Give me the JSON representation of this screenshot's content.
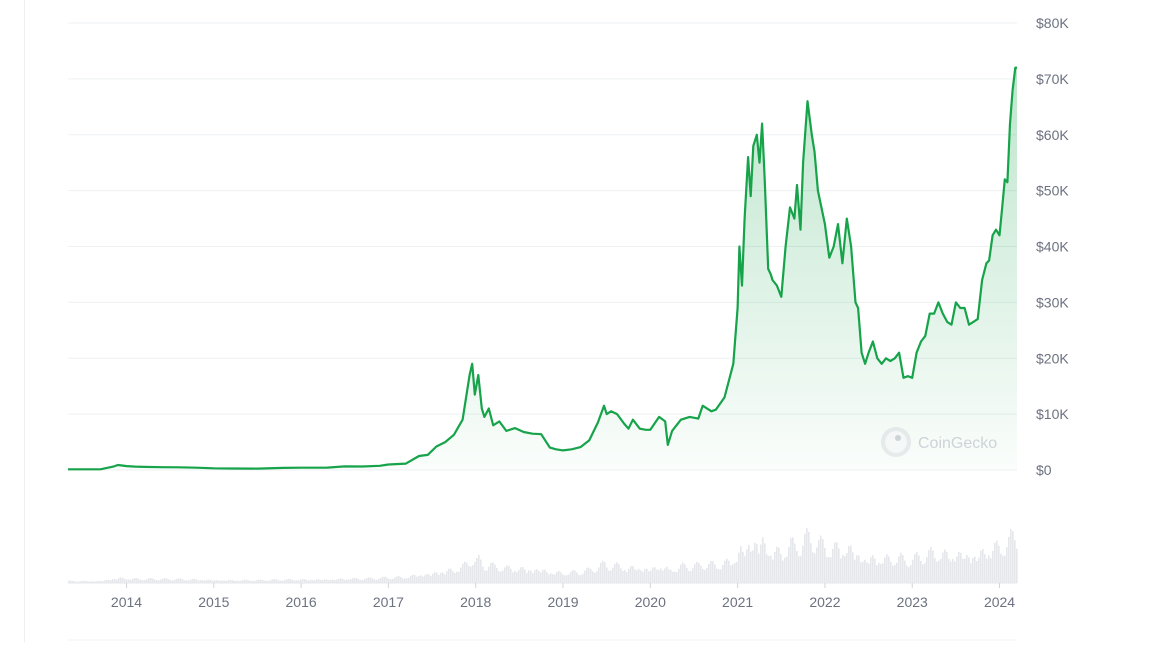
{
  "chart_data": {
    "type": "area",
    "title": "",
    "xlabel": "",
    "ylabel": "",
    "y_ticks": [
      {
        "value": 0,
        "label": "$0"
      },
      {
        "value": 10000,
        "label": "$10K"
      },
      {
        "value": 20000,
        "label": "$20K"
      },
      {
        "value": 30000,
        "label": "$30K"
      },
      {
        "value": 40000,
        "label": "$40K"
      },
      {
        "value": 50000,
        "label": "$50K"
      },
      {
        "value": 60000,
        "label": "$60K"
      },
      {
        "value": 70000,
        "label": "$70K"
      },
      {
        "value": 80000,
        "label": "$80K"
      }
    ],
    "x_ticks": [
      {
        "value": 2014,
        "label": "2014"
      },
      {
        "value": 2015,
        "label": "2015"
      },
      {
        "value": 2016,
        "label": "2016"
      },
      {
        "value": 2017,
        "label": "2017"
      },
      {
        "value": 2018,
        "label": "2018"
      },
      {
        "value": 2019,
        "label": "2019"
      },
      {
        "value": 2020,
        "label": "2020"
      },
      {
        "value": 2021,
        "label": "2021"
      },
      {
        "value": 2022,
        "label": "2022"
      },
      {
        "value": 2023,
        "label": "2023"
      },
      {
        "value": 2024,
        "label": "2024"
      }
    ],
    "xlim": [
      2013.33,
      2024.2
    ],
    "ylim": [
      0,
      80000
    ],
    "grid": true,
    "line_color": "#16a34a",
    "fill_color": "#16a34a",
    "volume_color": "#e5e7eb",
    "series": [
      {
        "x": [
          2013.33,
          2013.5,
          2013.7,
          2013.85,
          2013.9,
          2013.95,
          2014.0,
          2014.1,
          2014.2,
          2014.4,
          2014.6,
          2014.8,
          2015.0,
          2015.2,
          2015.5,
          2015.8,
          2016.0,
          2016.3,
          2016.5,
          2016.7,
          2016.9,
          2017.0,
          2017.2,
          2017.35,
          2017.45,
          2017.55,
          2017.65,
          2017.75,
          2017.85,
          2017.93,
          2017.96,
          2017.99,
          2018.03,
          2018.07,
          2018.1,
          2018.15,
          2018.2,
          2018.27,
          2018.35,
          2018.45,
          2018.55,
          2018.65,
          2018.75,
          2018.85,
          2018.92,
          2019.0,
          2019.1,
          2019.2,
          2019.3,
          2019.4,
          2019.47,
          2019.5,
          2019.55,
          2019.62,
          2019.7,
          2019.75,
          2019.8,
          2019.88,
          2019.95,
          2020.0,
          2020.1,
          2020.17,
          2020.2,
          2020.25,
          2020.35,
          2020.45,
          2020.55,
          2020.6,
          2020.7,
          2020.75,
          2020.85,
          2020.9,
          2020.95,
          2021.0,
          2021.02,
          2021.05,
          2021.08,
          2021.12,
          2021.15,
          2021.18,
          2021.22,
          2021.25,
          2021.28,
          2021.31,
          2021.35,
          2021.38,
          2021.4,
          2021.45,
          2021.5,
          2021.55,
          2021.6,
          2021.65,
          2021.68,
          2021.72,
          2021.75,
          2021.8,
          2021.85,
          2021.88,
          2021.92,
          2021.96,
          2022.0,
          2022.05,
          2022.1,
          2022.15,
          2022.2,
          2022.25,
          2022.3,
          2022.35,
          2022.38,
          2022.42,
          2022.46,
          2022.5,
          2022.55,
          2022.6,
          2022.65,
          2022.7,
          2022.75,
          2022.8,
          2022.85,
          2022.9,
          2022.95,
          2023.0,
          2023.05,
          2023.1,
          2023.15,
          2023.2,
          2023.25,
          2023.3,
          2023.35,
          2023.4,
          2023.45,
          2023.5,
          2023.55,
          2023.6,
          2023.65,
          2023.7,
          2023.75,
          2023.8,
          2023.85,
          2023.88,
          2023.92,
          2023.96,
          2024.0,
          2024.03,
          2024.06,
          2024.09,
          2024.12,
          2024.15,
          2024.18,
          2024.2
        ],
        "values": [
          120,
          120,
          130,
          600,
          900,
          800,
          700,
          600,
          550,
          500,
          480,
          420,
          300,
          260,
          250,
          370,
          420,
          430,
          650,
          620,
          750,
          980,
          1150,
          2500,
          2700,
          4200,
          5000,
          6300,
          9000,
          17000,
          19000,
          13500,
          17000,
          11000,
          9500,
          11000,
          8000,
          8700,
          7000,
          7500,
          6800,
          6500,
          6400,
          4000,
          3700,
          3500,
          3700,
          4100,
          5300,
          8500,
          11500,
          10000,
          10500,
          10000,
          8300,
          7400,
          9000,
          7400,
          7200,
          7200,
          9500,
          8700,
          4500,
          7000,
          9000,
          9500,
          9200,
          11500,
          10500,
          10800,
          13000,
          16000,
          19000,
          29000,
          40000,
          33000,
          45000,
          56000,
          49000,
          58000,
          60000,
          55000,
          62000,
          52000,
          36000,
          35000,
          34000,
          33000,
          31000,
          40000,
          47000,
          45000,
          51000,
          43000,
          55000,
          66000,
          60000,
          57000,
          50000,
          47000,
          44000,
          38000,
          40000,
          44000,
          37000,
          45000,
          40000,
          30000,
          29000,
          21000,
          19000,
          21000,
          23000,
          20000,
          19000,
          20000,
          19500,
          20000,
          21000,
          16500,
          16800,
          16500,
          21000,
          23000,
          24000,
          28000,
          28000,
          30000,
          28000,
          26500,
          26000,
          30000,
          29000,
          29000,
          26000,
          26500,
          27000,
          34000,
          37000,
          37500,
          42000,
          43000,
          42000,
          47000,
          52000,
          51500,
          62000,
          68000,
          72000,
          72000
        ]
      }
    ]
  },
  "watermark": {
    "brand": "CoinGecko",
    "icon": "gecko-icon"
  }
}
